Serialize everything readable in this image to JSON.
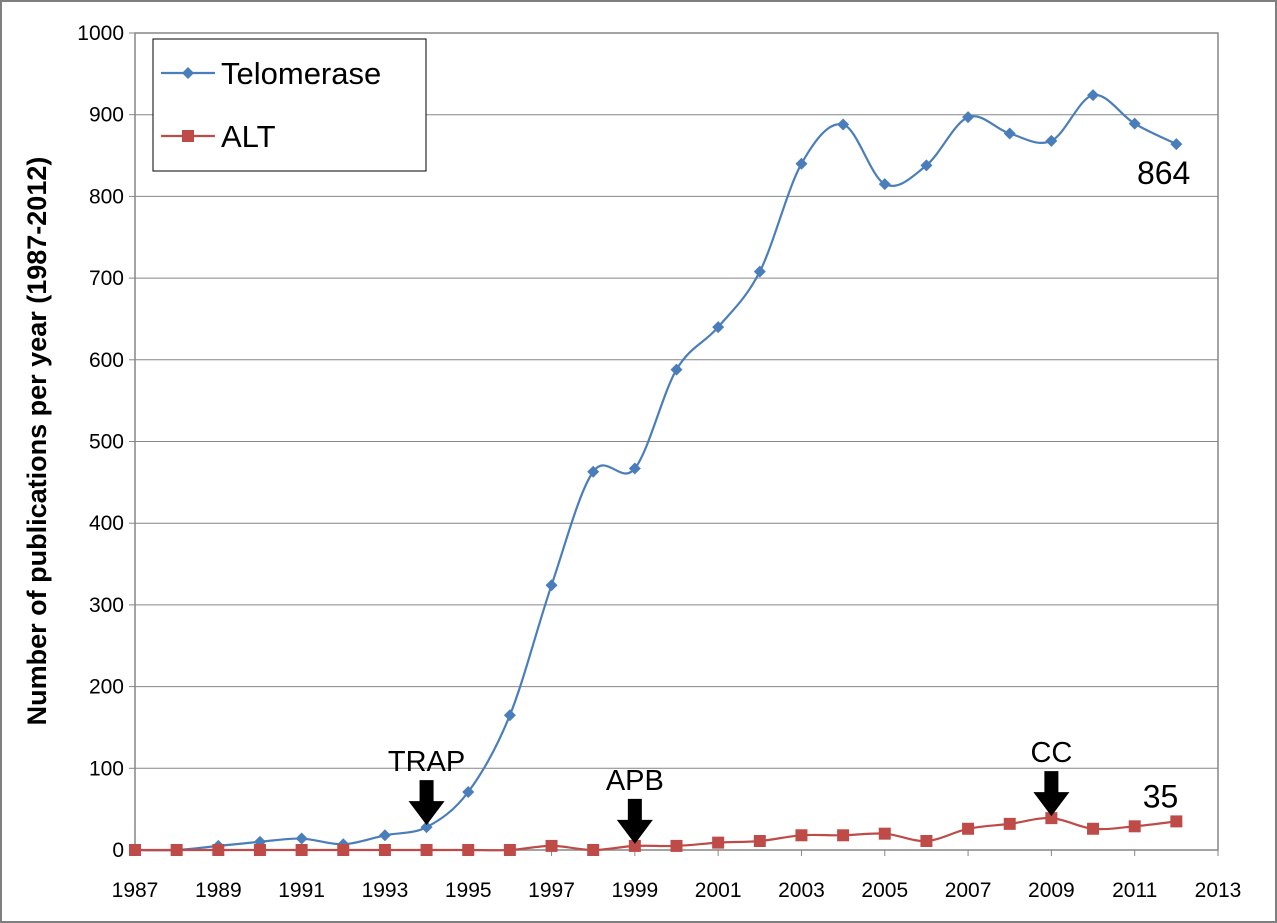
{
  "chart_data": {
    "type": "line",
    "title": "",
    "xlabel": "",
    "ylabel": "Number of publications per year (1987-2012)",
    "xlim": [
      1987,
      2013
    ],
    "ylim": [
      0,
      1000
    ],
    "x_ticks": [
      "1987",
      "1989",
      "1991",
      "1993",
      "1995",
      "1997",
      "1999",
      "2001",
      "2003",
      "2005",
      "2007",
      "2009",
      "2011",
      "2013"
    ],
    "y_ticks": [
      "0",
      "100",
      "200",
      "300",
      "400",
      "500",
      "600",
      "700",
      "800",
      "900",
      "1000"
    ],
    "grid": "horizontal",
    "legend_position": "top-left",
    "x": [
      1987,
      1988,
      1989,
      1990,
      1991,
      1992,
      1993,
      1994,
      1995,
      1996,
      1997,
      1998,
      1999,
      2000,
      2001,
      2002,
      2003,
      2004,
      2005,
      2006,
      2007,
      2008,
      2009,
      2010,
      2011,
      2012
    ],
    "series": [
      {
        "name": "Telomerase",
        "color": "#4a7ebb",
        "marker": "diamond",
        "values": [
          0,
          0,
          5,
          10,
          14,
          7,
          18,
          28,
          71,
          165,
          324,
          463,
          467,
          588,
          640,
          708,
          840,
          888,
          815,
          838,
          897,
          877,
          868,
          924,
          889,
          864
        ]
      },
      {
        "name": "ALT",
        "color": "#be4b48",
        "marker": "square",
        "values": [
          0,
          0,
          0,
          0,
          0,
          0,
          0,
          0,
          0,
          0,
          5,
          0,
          5,
          5,
          9,
          11,
          18,
          18,
          20,
          11,
          26,
          32,
          39,
          26,
          29,
          35
        ]
      }
    ],
    "annotations": [
      {
        "text": "TRAP",
        "x": 1994,
        "y": 28
      },
      {
        "text": "APB",
        "x": 1999,
        "y": 5
      },
      {
        "text": "CC",
        "x": 2009,
        "y": 39
      }
    ],
    "end_labels": [
      {
        "text": "864",
        "series": "Telomerase"
      },
      {
        "text": "35",
        "series": "ALT"
      }
    ]
  }
}
